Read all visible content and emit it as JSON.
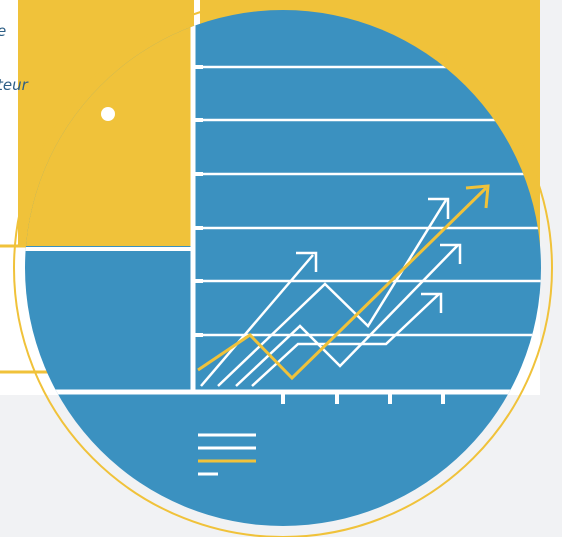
{
  "text_fragments": [
    "e",
    "teur"
  ],
  "colors": {
    "background": "#f1f2f4",
    "panel_white": "#ffffff",
    "accent_yellow": "#f0c23a",
    "circle_blue": "#3b91c0",
    "text_blue": "#2e5f86",
    "arrow_white": "#ffffff",
    "arrow_yellow": "#f0c23a"
  },
  "icons": [
    "rising-arrows-graphic",
    "menu-lines-icon",
    "dot-marker"
  ]
}
